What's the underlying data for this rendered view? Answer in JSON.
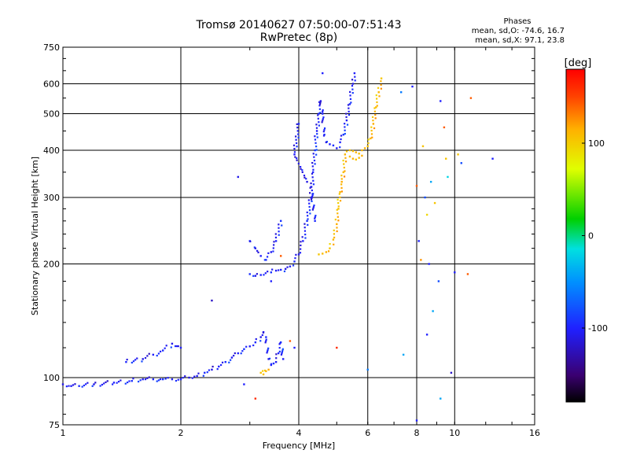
{
  "title": {
    "line1": "Tromsø 20140627 07:50:00-07:51:43",
    "line2": "RwPretec (8p)"
  },
  "phase_stats": {
    "heading": "Phases",
    "line_o": "mean, sd,O: -74.6, 16.7",
    "line_x": "mean, sd,X:  97.1, 23.8"
  },
  "colorbar": {
    "label": "[deg]",
    "tick_labels": [
      "100",
      "0",
      "-100"
    ],
    "tick_values": [
      100,
      0,
      -100
    ],
    "range": [
      -180,
      180
    ]
  },
  "colors": {
    "o_mode": "#1060e0",
    "x_mode": "#e0c800",
    "grid": "#000000"
  },
  "chart_data": {
    "type": "scatter",
    "xlabel": "Frequency [MHz]",
    "ylabel": "Stationary phase Virtual Height [km]",
    "x_scale": "log",
    "y_scale": "log",
    "xlim": [
      1,
      16
    ],
    "ylim": [
      75,
      750
    ],
    "x_ticks": [
      1,
      2,
      4,
      6,
      8,
      10,
      16
    ],
    "y_ticks": [
      75,
      100,
      200,
      300,
      400,
      500,
      600,
      750
    ],
    "grid": true,
    "series": [
      {
        "mode": "O",
        "color_phase": -100,
        "points": [
          [
            1.0,
            96
          ],
          [
            1.05,
            95
          ],
          [
            1.1,
            95
          ],
          [
            1.2,
            96
          ],
          [
            1.35,
            97
          ],
          [
            1.5,
            98
          ],
          [
            1.6,
            99
          ],
          [
            1.7,
            99
          ],
          [
            1.8,
            99
          ],
          [
            1.9,
            99
          ],
          [
            2.0,
            99
          ],
          [
            2.1,
            100
          ],
          [
            2.2,
            101
          ],
          [
            2.3,
            103
          ],
          [
            2.4,
            105
          ],
          [
            2.5,
            107
          ],
          [
            2.6,
            110
          ],
          [
            2.7,
            113
          ],
          [
            2.8,
            116
          ],
          [
            2.9,
            119
          ],
          [
            3.0,
            121
          ],
          [
            3.1,
            124
          ],
          [
            3.2,
            128
          ],
          [
            3.25,
            132
          ],
          [
            3.3,
            128
          ],
          [
            3.35,
            112
          ],
          [
            3.4,
            108
          ],
          [
            3.45,
            109
          ],
          [
            3.5,
            110
          ],
          [
            3.55,
            116
          ],
          [
            3.6,
            124
          ],
          [
            3.65,
            112
          ],
          [
            1.45,
            110
          ],
          [
            1.6,
            112
          ],
          [
            1.7,
            115
          ],
          [
            1.8,
            118
          ],
          [
            1.9,
            123
          ],
          [
            2.0,
            120
          ],
          [
            3.0,
            188
          ],
          [
            3.1,
            186
          ],
          [
            3.2,
            187
          ],
          [
            3.4,
            190
          ],
          [
            3.5,
            192
          ],
          [
            3.6,
            193
          ],
          [
            3.7,
            194
          ],
          [
            3.8,
            197
          ],
          [
            3.9,
            203
          ],
          [
            4.0,
            212
          ],
          [
            4.1,
            230
          ],
          [
            4.2,
            260
          ],
          [
            4.3,
            300
          ],
          [
            4.35,
            350
          ],
          [
            4.4,
            400
          ],
          [
            4.45,
            450
          ],
          [
            4.5,
            500
          ],
          [
            4.55,
            540
          ],
          [
            4.6,
            500
          ],
          [
            4.65,
            440
          ],
          [
            4.7,
            420
          ],
          [
            4.8,
            415
          ],
          [
            4.9,
            412
          ],
          [
            5.0,
            405
          ],
          [
            5.1,
            420
          ],
          [
            5.2,
            440
          ],
          [
            5.3,
            480
          ],
          [
            5.4,
            530
          ],
          [
            5.5,
            600
          ],
          [
            5.55,
            640
          ],
          [
            3.0,
            230
          ],
          [
            3.1,
            220
          ],
          [
            3.2,
            210
          ],
          [
            3.3,
            205
          ],
          [
            3.4,
            215
          ],
          [
            3.5,
            230
          ],
          [
            3.6,
            260
          ],
          [
            4.3,
            320
          ],
          [
            4.4,
            260
          ],
          [
            4.2,
            330
          ],
          [
            3.9,
            390
          ],
          [
            4.0,
            470
          ],
          [
            2.8,
            340
          ],
          [
            4.6,
            640
          ]
        ]
      },
      {
        "mode": "X",
        "color_phase": 105,
        "points": [
          [
            4.5,
            212
          ],
          [
            4.6,
            213
          ],
          [
            4.7,
            215
          ],
          [
            4.8,
            220
          ],
          [
            4.9,
            232
          ],
          [
            5.0,
            255
          ],
          [
            5.05,
            280
          ],
          [
            5.1,
            310
          ],
          [
            5.15,
            330
          ],
          [
            5.2,
            350
          ],
          [
            5.25,
            390
          ],
          [
            5.4,
            400
          ],
          [
            5.5,
            398
          ],
          [
            5.6,
            395
          ],
          [
            5.7,
            392
          ],
          [
            5.8,
            400
          ],
          [
            5.9,
            405
          ],
          [
            6.0,
            410
          ],
          [
            6.1,
            430
          ],
          [
            6.2,
            470
          ],
          [
            6.3,
            520
          ],
          [
            6.4,
            570
          ],
          [
            6.5,
            620
          ],
          [
            5.4,
            385
          ],
          [
            5.5,
            380
          ],
          [
            5.6,
            378
          ],
          [
            5.7,
            382
          ],
          [
            5.8,
            387
          ],
          [
            3.2,
            103
          ],
          [
            3.3,
            104
          ],
          [
            3.35,
            105
          ],
          [
            3.25,
            102
          ]
        ]
      }
    ],
    "scattered_points": [
      [
        7.3,
        570,
        -60
      ],
      [
        7.4,
        115,
        -40
      ],
      [
        7.8,
        590,
        -100
      ],
      [
        8.0,
        322,
        140
      ],
      [
        8.1,
        230,
        -100
      ],
      [
        8.2,
        205,
        120
      ],
      [
        8.3,
        410,
        100
      ],
      [
        8.4,
        300,
        -80
      ],
      [
        8.5,
        270,
        90
      ],
      [
        8.6,
        200,
        -100
      ],
      [
        8.7,
        330,
        -40
      ],
      [
        8.9,
        290,
        100
      ],
      [
        9.1,
        180,
        -80
      ],
      [
        9.2,
        540,
        -100
      ],
      [
        9.4,
        460,
        140
      ],
      [
        9.5,
        380,
        100
      ],
      [
        9.6,
        340,
        -20
      ],
      [
        9.8,
        103,
        -120
      ],
      [
        10.0,
        190,
        -100
      ],
      [
        10.2,
        390,
        100
      ],
      [
        10.4,
        370,
        -80
      ],
      [
        10.8,
        188,
        140
      ],
      [
        11.0,
        550,
        140
      ],
      [
        12.5,
        380,
        -100
      ],
      [
        6.0,
        105,
        -60
      ],
      [
        8.8,
        150,
        -40
      ],
      [
        8.5,
        130,
        -100
      ],
      [
        5.0,
        120,
        160
      ],
      [
        3.8,
        125,
        140
      ],
      [
        3.9,
        120,
        -100
      ],
      [
        3.1,
        88,
        160
      ],
      [
        2.9,
        96,
        -100
      ],
      [
        8.0,
        77,
        -100
      ],
      [
        9.2,
        88,
        -40
      ],
      [
        2.4,
        160,
        -120
      ],
      [
        3.4,
        180,
        -100
      ],
      [
        3.6,
        210,
        140
      ]
    ]
  }
}
